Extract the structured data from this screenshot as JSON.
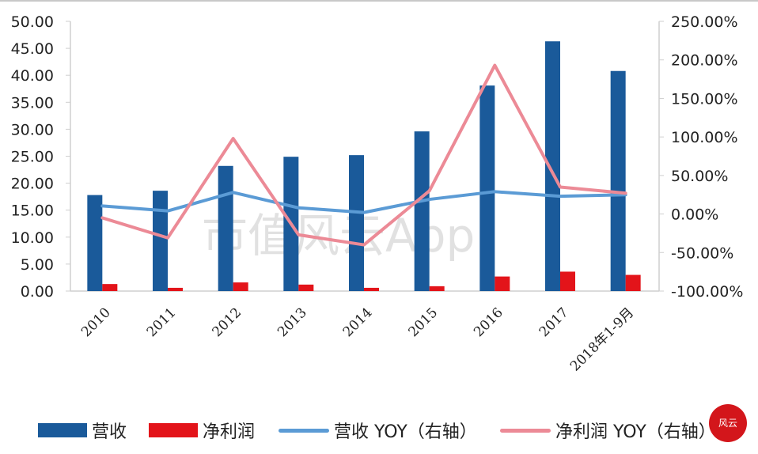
{
  "chart_data": {
    "type": "bar+line",
    "title": "",
    "categories": [
      "2010",
      "2011",
      "2012",
      "2013",
      "2014",
      "2015",
      "2016",
      "2017",
      "2018年1-9月"
    ],
    "series": [
      {
        "name": "营收",
        "type": "bar",
        "axis": "left",
        "color": "#1a5a9a",
        "values": [
          17.8,
          18.6,
          23.2,
          24.9,
          25.2,
          29.6,
          38.1,
          46.3,
          40.8
        ]
      },
      {
        "name": "净利润",
        "type": "bar",
        "axis": "left",
        "color": "#e3141a",
        "values": [
          1.3,
          0.6,
          1.6,
          1.2,
          0.6,
          0.9,
          2.7,
          3.6,
          3.0
        ]
      },
      {
        "name": "营收 YOY（右轴）",
        "type": "line",
        "axis": "right",
        "color": "#5b9bd5",
        "values": [
          10.5,
          4.0,
          28.0,
          8.0,
          2.0,
          19.0,
          29.0,
          23.0,
          25.0
        ]
      },
      {
        "name": "净利润 YOY（右轴）",
        "type": "line",
        "axis": "right",
        "color": "#ec8a96",
        "values": [
          -5.0,
          -31.0,
          98.0,
          -27.0,
          -40.0,
          30.0,
          193.0,
          35.0,
          27.0
        ]
      }
    ],
    "left_axis": {
      "min": 0,
      "max": 50,
      "step": 5,
      "ticks": [
        "0.00",
        "5.00",
        "10.00",
        "15.00",
        "20.00",
        "25.00",
        "30.00",
        "35.00",
        "40.00",
        "45.00",
        "50.00"
      ]
    },
    "right_axis": {
      "min": -100,
      "max": 250,
      "step": 50,
      "ticks": [
        "-100.00%",
        "-50.00%",
        "0.00%",
        "50.00%",
        "100.00%",
        "150.00%",
        "200.00%",
        "250.00%"
      ]
    },
    "xlabel": "",
    "ylabel": "",
    "grid": false,
    "legend_position": "bottom"
  },
  "legend": [
    {
      "label": "营收"
    },
    {
      "label": "净利润"
    },
    {
      "label": "营收 YOY（右轴）"
    },
    {
      "label": "净利润 YOY（右轴）"
    }
  ],
  "watermark": "市值风云App",
  "stamp": "风云"
}
